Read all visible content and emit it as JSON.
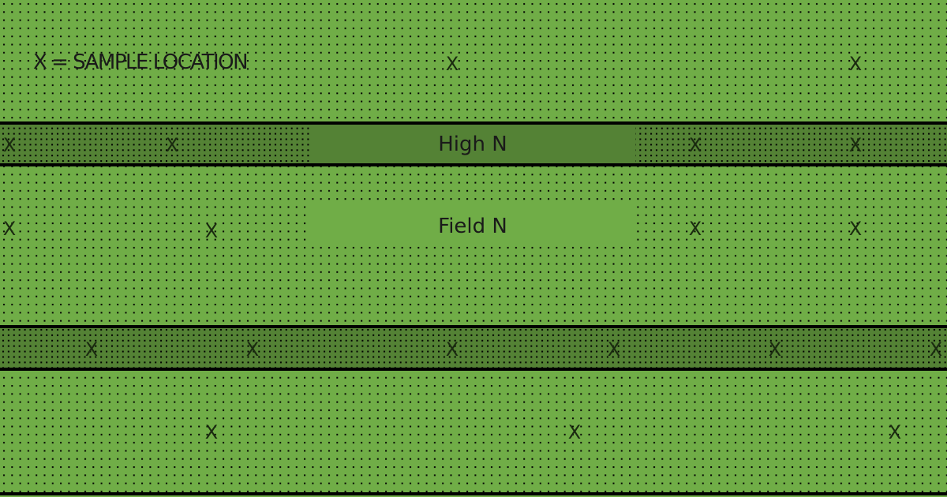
{
  "legend": "X = SAMPLE LOCATION",
  "marker_label": "X",
  "high_n_label": "High N",
  "field_n_label": "Field N",
  "colors": {
    "field": "#70ad47",
    "strip": "#548235",
    "border": "#000000"
  }
}
